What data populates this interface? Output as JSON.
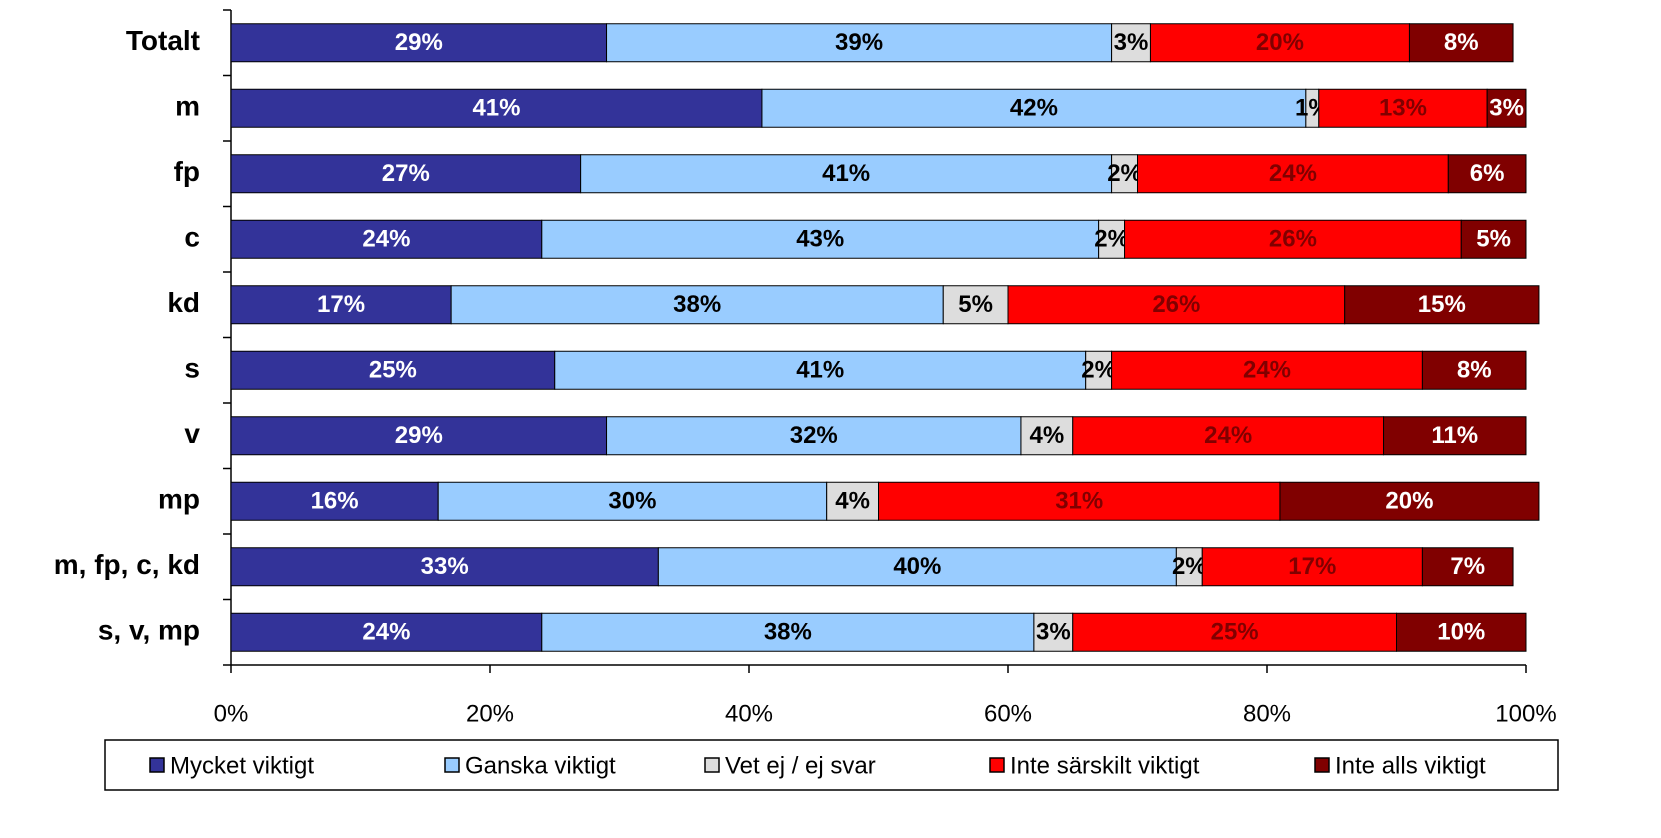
{
  "chart_data": {
    "type": "stacked_barh",
    "categories": [
      "Totalt",
      "m",
      "fp",
      "c",
      "kd",
      "s",
      "v",
      "mp",
      "m, fp, c, kd",
      "s, v, mp"
    ],
    "series": [
      {
        "name": "Mycket viktigt",
        "color": "#333399",
        "label_color": "#ffffff",
        "values": [
          29,
          41,
          27,
          24,
          17,
          25,
          29,
          16,
          33,
          24
        ],
        "value_labels": [
          "29%",
          "41%",
          "27%",
          "24%",
          "17%",
          "25%",
          "29%",
          "16%",
          "33%",
          "24%"
        ]
      },
      {
        "name": "Ganska viktigt",
        "color": "#99ccff",
        "label_color": "#000000",
        "values": [
          39,
          42,
          41,
          43,
          38,
          41,
          32,
          30,
          40,
          38
        ],
        "value_labels": [
          "39%",
          "42%",
          "41%",
          "43%",
          "38%",
          "41%",
          "32%",
          "30%",
          "40%",
          "38%"
        ]
      },
      {
        "name": "Vet ej / ej svar",
        "color": "#dddddd",
        "label_color": "#000000",
        "values": [
          3,
          1,
          2,
          2,
          5,
          2,
          4,
          4,
          2,
          3
        ],
        "value_labels": [
          "3%",
          "1%",
          "2%",
          "2%",
          "5%",
          "2%",
          "4%",
          "4%",
          "2%",
          "3%"
        ]
      },
      {
        "name": "Inte särskilt viktigt",
        "color": "#ff0000",
        "label_color": "#800000",
        "values": [
          20,
          13,
          24,
          26,
          26,
          24,
          24,
          31,
          17,
          25
        ],
        "value_labels": [
          "20%",
          "13%",
          "24%",
          "26%",
          "26%",
          "24%",
          "24%",
          "31%",
          "17%",
          "25%"
        ]
      },
      {
        "name": "Inte alls viktigt",
        "color": "#800000",
        "label_color": "#ffffff",
        "values": [
          8,
          3,
          6,
          5,
          15,
          8,
          11,
          20,
          7,
          10
        ],
        "value_labels": [
          "8%",
          "3%",
          "6%",
          "5%",
          "15%",
          "8%",
          "11%",
          "20%",
          "7%",
          "10%"
        ]
      }
    ],
    "xlim": [
      0,
      100
    ],
    "xticks": [
      {
        "value": 0,
        "label": "0%"
      },
      {
        "value": 20,
        "label": "20%"
      },
      {
        "value": 40,
        "label": "40%"
      },
      {
        "value": 60,
        "label": "60%"
      },
      {
        "value": 80,
        "label": "80%"
      },
      {
        "value": 100,
        "label": "100%"
      }
    ],
    "legend": "bottom"
  }
}
